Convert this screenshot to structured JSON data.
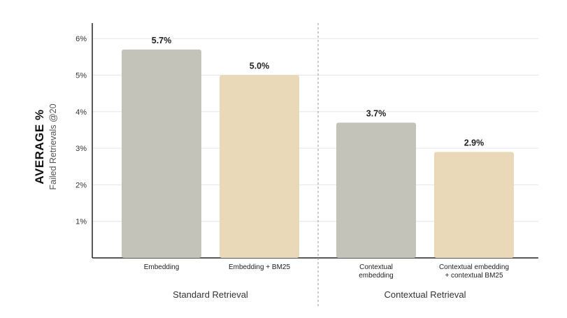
{
  "colors": {
    "gray_bar": "#c4c3ba",
    "beige_bar": "#ead9b9"
  },
  "chart_data": {
    "type": "bar",
    "ylabel": "AVERAGE %",
    "ylabel_sub": "Failed Retrievals @20",
    "yticks": [
      "1%",
      "2%",
      "3%",
      "4%",
      "5%",
      "6%"
    ],
    "ylim": [
      0,
      6.3
    ],
    "grid": true,
    "categories": [
      {
        "label_lines": [
          "Embedding"
        ],
        "value": 5.7,
        "data_label": "5.7%",
        "color": "gray"
      },
      {
        "label_lines": [
          "Embedding + BM25"
        ],
        "value": 5.0,
        "data_label": "5.0%",
        "color": "beige"
      },
      {
        "label_lines": [
          "Contextual",
          "embedding"
        ],
        "value": 3.7,
        "data_label": "3.7%",
        "color": "gray"
      },
      {
        "label_lines": [
          "Contextual embedding",
          "+ contextual BM25"
        ],
        "value": 2.9,
        "data_label": "2.9%",
        "color": "beige"
      }
    ],
    "groups": [
      {
        "label": "Standard Retrieval",
        "members": [
          0,
          1
        ]
      },
      {
        "label": "Contextual Retrieval",
        "members": [
          2,
          3
        ]
      }
    ]
  }
}
